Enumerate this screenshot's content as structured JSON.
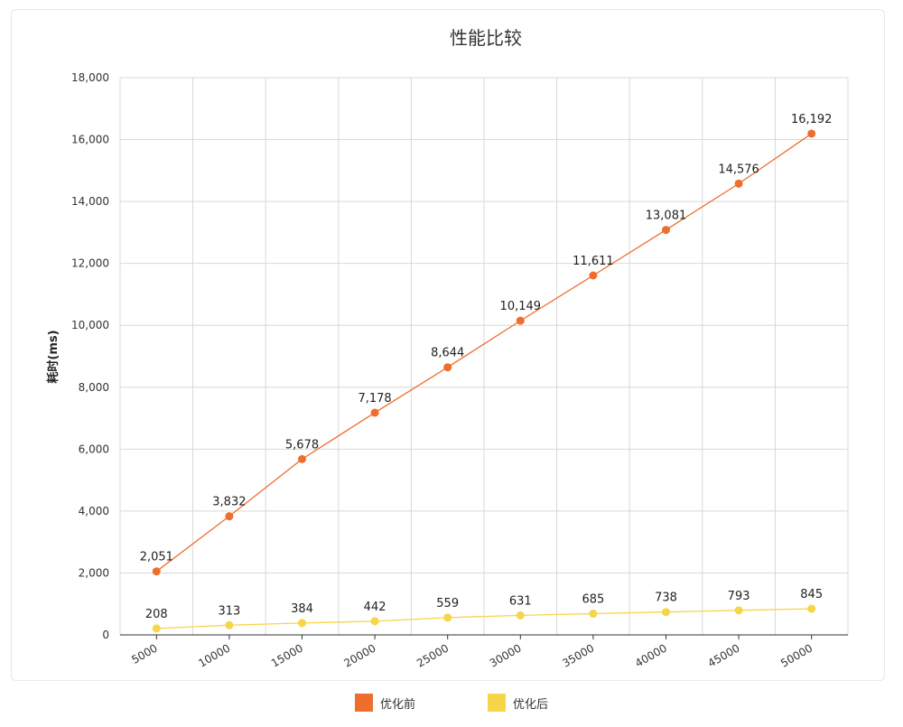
{
  "chart_data": {
    "type": "line",
    "title": "性能比较",
    "ylabel": "耗时(ms)",
    "xlabel": "",
    "categories": [
      "5000",
      "10000",
      "15000",
      "20000",
      "25000",
      "30000",
      "35000",
      "40000",
      "45000",
      "50000"
    ],
    "ylim": [
      0,
      18000
    ],
    "yticks": [
      "0",
      "2,000",
      "4,000",
      "6,000",
      "8,000",
      "10,000",
      "12,000",
      "14,000",
      "16,000",
      "18,000"
    ],
    "series": [
      {
        "name": "优化前",
        "color": "#EE6E2D",
        "values": [
          2051,
          3832,
          5678,
          7178,
          8644,
          10149,
          11611,
          13081,
          14576,
          16192
        ],
        "labels": [
          "2,051",
          "3,832",
          "5,678",
          "7,178",
          "8,644",
          "10,149",
          "11,611",
          "13,081",
          "14,576",
          "16,192"
        ]
      },
      {
        "name": "优化后",
        "color": "#F7D548",
        "values": [
          208,
          313,
          384,
          442,
          559,
          631,
          685,
          738,
          793,
          845
        ],
        "labels": [
          "208",
          "313",
          "384",
          "442",
          "559",
          "631",
          "685",
          "738",
          "793",
          "845"
        ]
      }
    ],
    "grid": true,
    "legend_position": "bottom"
  }
}
